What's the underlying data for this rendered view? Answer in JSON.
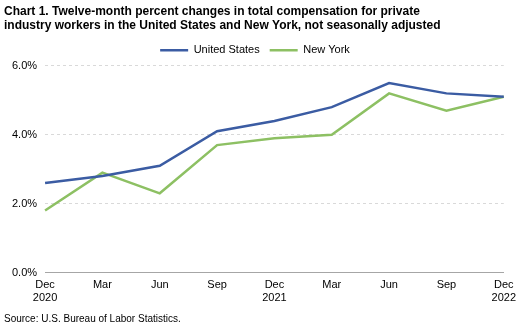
{
  "chart_data": {
    "type": "line",
    "title": [
      "Chart 1. Twelve-month percent changes in total compensation for private",
      "industry workers in the United States and New York, not seasonally adjusted"
    ],
    "source": "Source: U.S. Bureau of Labor Statistics.",
    "categories": [
      "Dec 2020",
      "Mar",
      "Jun",
      "Sep",
      "Dec 2021",
      "Mar",
      "Jun",
      "Sep",
      "Dec 2022"
    ],
    "series": [
      {
        "name": "United States",
        "color": "#3b5ca3",
        "values": [
          2.6,
          2.8,
          3.1,
          4.1,
          4.4,
          4.8,
          5.5,
          5.2,
          5.1
        ]
      },
      {
        "name": "New York",
        "color": "#8dc063",
        "values": [
          1.8,
          2.9,
          2.3,
          3.7,
          3.9,
          4.0,
          5.2,
          4.7,
          5.1
        ]
      }
    ],
    "ylim": [
      0,
      6
    ],
    "yticks": [
      {
        "value": 0,
        "label": "0.0%"
      },
      {
        "value": 2,
        "label": "2.0%"
      },
      {
        "value": 4,
        "label": "4.0%"
      },
      {
        "value": 6,
        "label": "6.0%"
      }
    ],
    "grid": true,
    "legend": "top"
  }
}
